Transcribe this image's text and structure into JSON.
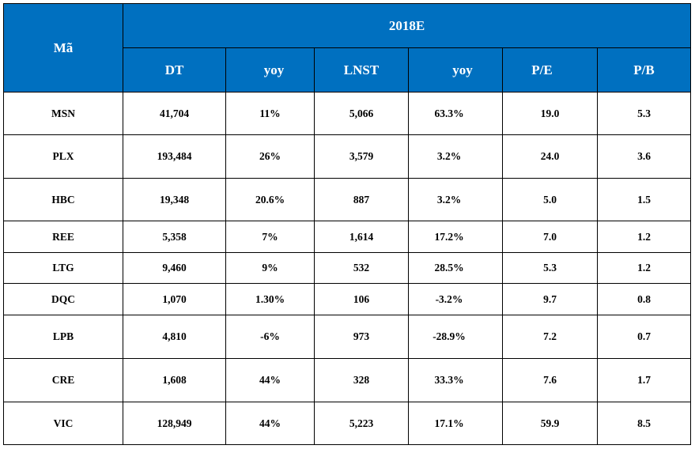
{
  "table": {
    "header": {
      "code_label": "Mã",
      "period": "2018E",
      "columns": [
        "DT",
        "yoy",
        "LNST",
        "yoy",
        "P/E",
        "P/B"
      ]
    },
    "rows": [
      {
        "code": "MSN",
        "cells": [
          "41,704",
          "11%",
          "5,066",
          "63.3%",
          "19.0",
          "5.3"
        ]
      },
      {
        "code": "PLX",
        "cells": [
          "193,484",
          "26%",
          "3,579",
          "3.2%",
          "24.0",
          "3.6"
        ]
      },
      {
        "code": "HBC",
        "cells": [
          "19,348",
          "20.6%",
          "887",
          "3.2%",
          "5.0",
          "1.5"
        ]
      },
      {
        "code": "REE",
        "cells": [
          "5,358",
          "7%",
          "1,614",
          "17.2%",
          "7.0",
          "1.2"
        ]
      },
      {
        "code": "LTG",
        "cells": [
          "9,460",
          "9%",
          "532",
          "28.5%",
          "5.3",
          "1.2"
        ]
      },
      {
        "code": "DQC",
        "cells": [
          "1,070",
          "1.30%",
          "106",
          "-3.2%",
          "9.7",
          "0.8"
        ]
      },
      {
        "code": "LPB",
        "cells": [
          "4,810",
          "-6%",
          "973",
          "-28.9%",
          "7.2",
          "0.7"
        ]
      },
      {
        "code": "CRE",
        "cells": [
          "1,608",
          "44%",
          "328",
          "33.3%",
          "7.6",
          "1.7"
        ]
      },
      {
        "code": "VIC",
        "cells": [
          "128,949",
          "44%",
          "5,223",
          "17.1%",
          "59.9",
          "8.5"
        ]
      }
    ]
  },
  "colors": {
    "header_bg": "#0070c0",
    "header_text": "#ffffff",
    "grid": "#000000",
    "body_text": "#000000"
  }
}
